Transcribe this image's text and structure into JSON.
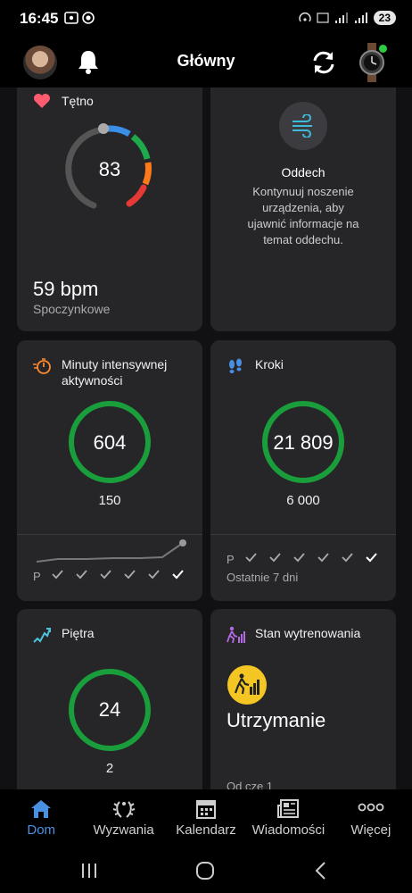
{
  "status_bar": {
    "time": "16:45",
    "battery": "23"
  },
  "header": {
    "title": "Główny"
  },
  "cards": {
    "heart_rate": {
      "title": "Tętno",
      "current": "83",
      "resting_value": "59 bpm",
      "resting_label": "Spoczynkowe"
    },
    "breathing": {
      "title": "Oddech",
      "message": "Kontynuuj noszenie urządzenia, aby ujawnić informacje na temat oddechu."
    },
    "intensity": {
      "title_line1": "Minuty intensywnej",
      "title_line2": "aktywności",
      "value": "604",
      "goal": "150",
      "first_day": "P"
    },
    "steps": {
      "title": "Kroki",
      "value": "21 809",
      "goal": "6 000",
      "first_day": "P",
      "period": "Ostatnie 7 dni"
    },
    "floors": {
      "title": "Piętra",
      "value": "24",
      "goal": "2"
    },
    "training": {
      "title": "Stan wytrenowania",
      "status": "Utrzymanie",
      "since": "Od cze 1"
    }
  },
  "nav": {
    "items": [
      {
        "label": "Dom",
        "icon": "home-icon"
      },
      {
        "label": "Wyzwania",
        "icon": "laurel-icon"
      },
      {
        "label": "Kalendarz",
        "icon": "calendar-icon"
      },
      {
        "label": "Wiadomości",
        "icon": "news-icon"
      },
      {
        "label": "Więcej",
        "icon": "more-icon"
      }
    ]
  },
  "colors": {
    "accent": "#4a90e2",
    "ring_green": "#1a9e3c",
    "heart": "#ff5b6e"
  }
}
